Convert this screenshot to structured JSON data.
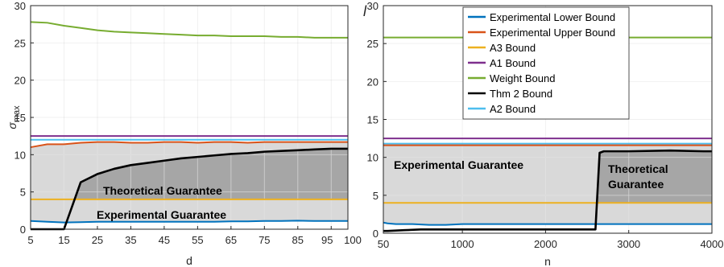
{
  "colors": {
    "lower": "#0072BD",
    "upper": "#D95319",
    "a3": "#EDB120",
    "a1": "#7E2F8E",
    "weight": "#77AC30",
    "thm2": "#000000",
    "a2": "#4DBEEE",
    "experimental_region": "#d9d9d9",
    "theoretical_region": "#a6a6a6"
  },
  "chart_data": [
    {
      "type": "line",
      "title": "",
      "xlabel": "d",
      "ylabel": "σ_max",
      "ylabel_main": "σ",
      "ylabel_sub": "max",
      "xlim": [
        5,
        100
      ],
      "ylim": [
        0,
        30
      ],
      "grid": true,
      "xticks": [
        5,
        15,
        25,
        35,
        45,
        55,
        65,
        75,
        85,
        95,
        100
      ],
      "xtick_labels": [
        "5",
        "15",
        "25",
        "35",
        "45",
        "55",
        "65",
        "75",
        "85",
        "95",
        "100"
      ],
      "yticks": [
        0,
        5,
        10,
        15,
        20,
        25,
        30
      ],
      "ytick_labels": [
        "0",
        "5",
        "10",
        "15",
        "20",
        "25",
        "30"
      ],
      "annotations": [
        "Theoretical Guarantee",
        "Experimental Guarantee"
      ],
      "x": [
        5,
        10,
        15,
        20,
        25,
        30,
        35,
        40,
        45,
        50,
        55,
        60,
        65,
        70,
        75,
        80,
        85,
        90,
        95,
        100
      ],
      "series": [
        {
          "name": "Experimental Lower Bound",
          "color_key": "lower",
          "values": [
            1.1,
            1.0,
            0.9,
            0.95,
            1.0,
            1.0,
            1.0,
            1.0,
            1.0,
            1.0,
            1.0,
            1.0,
            1.05,
            1.05,
            1.1,
            1.1,
            1.15,
            1.1,
            1.1,
            1.1
          ]
        },
        {
          "name": "Experimental Upper Bound",
          "color_key": "upper",
          "values": [
            11.0,
            11.4,
            11.4,
            11.6,
            11.7,
            11.7,
            11.6,
            11.6,
            11.7,
            11.7,
            11.6,
            11.7,
            11.7,
            11.6,
            11.7,
            11.7,
            11.7,
            11.7,
            11.7,
            11.7
          ]
        },
        {
          "name": "A3 Bound",
          "color_key": "a3",
          "values": [
            4.0,
            4.0,
            4.0,
            4.0,
            4.0,
            4.0,
            4.0,
            4.0,
            4.0,
            4.0,
            4.0,
            4.0,
            4.0,
            4.0,
            4.0,
            4.0,
            4.0,
            4.0,
            4.0,
            4.0
          ]
        },
        {
          "name": "A1 Bound",
          "color_key": "a1",
          "values": [
            12.5,
            12.5,
            12.5,
            12.5,
            12.5,
            12.5,
            12.5,
            12.5,
            12.5,
            12.5,
            12.5,
            12.5,
            12.5,
            12.5,
            12.5,
            12.5,
            12.5,
            12.5,
            12.5,
            12.5
          ]
        },
        {
          "name": "Weight Bound",
          "color_key": "weight",
          "values": [
            27.8,
            27.7,
            27.3,
            27.0,
            26.7,
            26.5,
            26.4,
            26.3,
            26.2,
            26.1,
            26.0,
            26.0,
            25.9,
            25.9,
            25.9,
            25.8,
            25.8,
            25.7,
            25.7,
            25.7
          ]
        },
        {
          "name": "Thm 2 Bound",
          "color_key": "thm2",
          "values": [
            0.0,
            0.0,
            0.0,
            6.3,
            7.4,
            8.1,
            8.6,
            8.9,
            9.2,
            9.5,
            9.7,
            9.9,
            10.1,
            10.2,
            10.4,
            10.5,
            10.6,
            10.7,
            10.8,
            10.8
          ]
        },
        {
          "name": "A2 Bound",
          "color_key": "a2",
          "values": [
            12.0,
            12.0,
            12.0,
            12.0,
            12.0,
            12.0,
            12.0,
            12.0,
            12.0,
            12.0,
            12.0,
            12.0,
            12.0,
            12.0,
            12.0,
            12.0,
            12.0,
            12.0,
            12.0,
            12.0
          ]
        }
      ]
    },
    {
      "type": "line",
      "title": "",
      "xlabel": "n",
      "ylabel": "",
      "xlim": [
        50,
        4000
      ],
      "ylim": [
        0,
        30
      ],
      "grid": true,
      "legend_position": "top-center",
      "xticks": [
        50,
        1000,
        2000,
        3000,
        4000
      ],
      "xtick_labels": [
        "50",
        "1000",
        "2000",
        "3000",
        "4000"
      ],
      "yticks": [
        0,
        5,
        10,
        15,
        20,
        25,
        30
      ],
      "ytick_labels": [
        "0",
        "5",
        "10",
        "15",
        "20",
        "25",
        "30"
      ],
      "annotations": [
        "Experimental Guarantee",
        "Theoretical",
        "Guarantee"
      ],
      "series": [
        {
          "name": "Experimental Lower Bound",
          "color_key": "lower",
          "x": [
            50,
            100,
            200,
            400,
            600,
            800,
            1000,
            2000,
            3000,
            4000
          ],
          "values": [
            1.4,
            1.3,
            1.2,
            1.2,
            1.1,
            1.1,
            1.2,
            1.2,
            1.2,
            1.2
          ]
        },
        {
          "name": "Experimental Upper Bound",
          "color_key": "upper",
          "x": [
            50,
            1000,
            2000,
            3000,
            4000
          ],
          "values": [
            11.6,
            11.6,
            11.6,
            11.6,
            11.6
          ]
        },
        {
          "name": "A3 Bound",
          "color_key": "a3",
          "x": [
            50,
            4000
          ],
          "values": [
            4.0,
            4.0
          ]
        },
        {
          "name": "A1 Bound",
          "color_key": "a1",
          "x": [
            50,
            4000
          ],
          "values": [
            12.5,
            12.5
          ]
        },
        {
          "name": "Weight Bound",
          "color_key": "weight",
          "x": [
            50,
            4000
          ],
          "values": [
            25.8,
            25.8
          ]
        },
        {
          "name": "Thm 2 Bound",
          "color_key": "thm2",
          "x": [
            50,
            100,
            300,
            500,
            700,
            1000,
            1500,
            2000,
            2500,
            2600,
            2650,
            2700,
            3000,
            3500,
            3900,
            4000
          ],
          "values": [
            0.3,
            0.3,
            0.4,
            0.5,
            0.5,
            0.5,
            0.5,
            0.5,
            0.5,
            0.5,
            10.6,
            10.8,
            10.8,
            10.9,
            10.8,
            10.8
          ]
        },
        {
          "name": "A2 Bound",
          "color_key": "a2",
          "x": [
            50,
            4000
          ],
          "values": [
            11.8,
            11.8
          ]
        }
      ]
    }
  ],
  "stray_glyph": "l"
}
